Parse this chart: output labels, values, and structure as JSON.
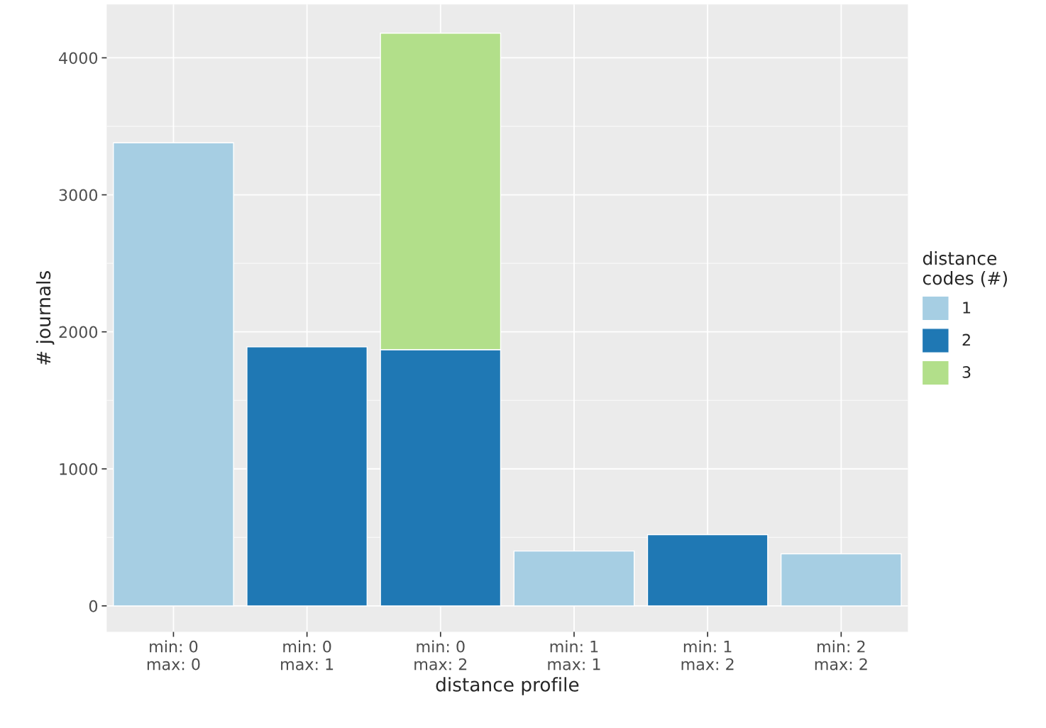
{
  "chart_data": {
    "type": "bar",
    "stacked": true,
    "xlabel": "distance profile",
    "ylabel": "# journals",
    "legend_title": "distance\ncodes (#)",
    "categories": [
      "min: 0\nmax: 0",
      "min: 0\nmax: 1",
      "min: 0\nmax: 2",
      "min: 1\nmax: 1",
      "min: 1\nmax: 2",
      "min: 2\nmax: 2"
    ],
    "series": [
      {
        "name": "1",
        "color": "#a6cee3",
        "values": [
          3380,
          null,
          null,
          400,
          null,
          380
        ]
      },
      {
        "name": "2",
        "color": "#1f78b4",
        "values": [
          null,
          1890,
          1870,
          null,
          520,
          null
        ]
      },
      {
        "name": "3",
        "color": "#b2df8a",
        "values": [
          null,
          null,
          2310,
          null,
          null,
          null
        ]
      }
    ],
    "ylim": [
      -190,
      4390
    ],
    "yticks": [
      0,
      1000,
      2000,
      3000,
      4000
    ],
    "grid": true,
    "legend": "right"
  }
}
